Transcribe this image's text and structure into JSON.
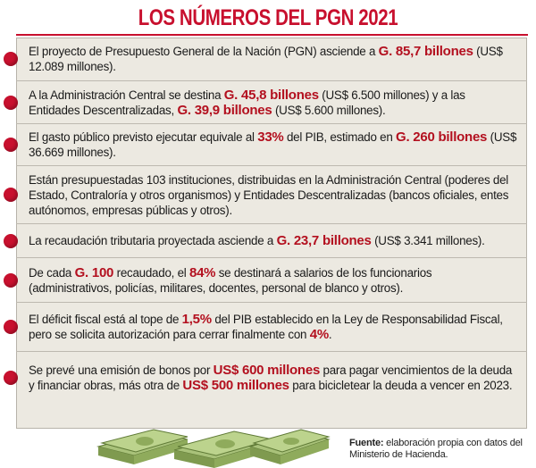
{
  "title": "LOS NÚMEROS DEL PGN 2021",
  "items": [
    {
      "parts": [
        {
          "t": "El proyecto de Presupuesto General de la Nación (PGN) asciende a "
        },
        {
          "t": "G. 85,7 billones",
          "hl": true
        },
        {
          "t": " (US$ 12.089 millones)."
        }
      ]
    },
    {
      "parts": [
        {
          "t": "A la Administración Central se destina "
        },
        {
          "t": "G. 45,8 billones",
          "hl": true
        },
        {
          "t": " (US$ 6.500 millones) y a las Entidades Descentralizadas, "
        },
        {
          "t": "G. 39,9 billones",
          "hl": true
        },
        {
          "t": " (US$ 5.600 millones)."
        }
      ]
    },
    {
      "parts": [
        {
          "t": "El gasto público previsto ejecutar equivale al "
        },
        {
          "t": "33%",
          "hl": true
        },
        {
          "t": " del PIB, estimado en "
        },
        {
          "t": "G. 260 billones",
          "hl": true
        },
        {
          "t": " (US$ 36.669 millones)."
        }
      ]
    },
    {
      "parts": [
        {
          "t": "Están presupuestadas 103 instituciones, distribuidas en la Administración Central (poderes del Estado, Contraloría y otros organismos) y Entidades Descentralizadas (bancos oficiales, entes autónomos, empresas públicas y otros)."
        }
      ]
    },
    {
      "parts": [
        {
          "t": "La recaudación tributaria proyectada asciende a "
        },
        {
          "t": "G. 23,7 billones",
          "hl": true
        },
        {
          "t": " (US$ 3.341 millones)."
        }
      ]
    },
    {
      "parts": [
        {
          "t": "De cada "
        },
        {
          "t": "G. 100",
          "hl": true
        },
        {
          "t": " recaudado, el "
        },
        {
          "t": "84%",
          "hl": true
        },
        {
          "t": " se destinará a salarios de los funcionarios (administrativos, policías, militares, docentes, personal de blanco y otros)."
        }
      ]
    },
    {
      "parts": [
        {
          "t": "El déficit fiscal está al tope de "
        },
        {
          "t": "1,5%",
          "hl": true
        },
        {
          "t": " del PIB establecido en la Ley de Responsabilidad Fiscal, pero se solicita autorización para cerrar finalmente con "
        },
        {
          "t": "4%",
          "hl": true
        },
        {
          "t": "."
        }
      ]
    },
    {
      "parts": [
        {
          "t": "Se prevé una emisión de bonos por "
        },
        {
          "t": "US$ 600 millones",
          "hl": true
        },
        {
          "t": " para pagar vencimientos de la deuda y financiar obras, más otra de "
        },
        {
          "t": "US$ 500 millones",
          "hl": true
        },
        {
          "t": " para bicicletear la deuda a vencer en 2023."
        }
      ]
    }
  ],
  "source": {
    "label": "Fuente:",
    "text": " elaboración propia con datos del Ministerio de Hacienda."
  },
  "colors": {
    "accent": "#c8102e",
    "highlight": "#b3101f",
    "panel": "#ece9e1"
  },
  "illustration_icon": "money-stacks-icon"
}
